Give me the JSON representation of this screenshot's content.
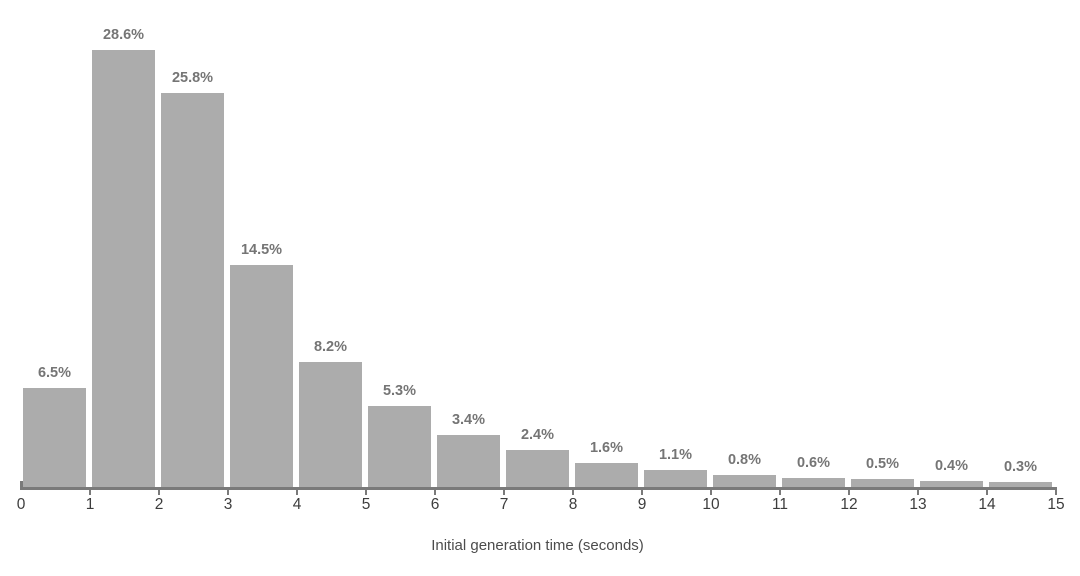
{
  "chart_data": {
    "type": "bar",
    "subtype": "histogram",
    "title": "",
    "xlabel": "Initial generation time (seconds)",
    "ylabel": "",
    "bin_edges": [
      0,
      1,
      2,
      3,
      4,
      5,
      6,
      7,
      8,
      9,
      10,
      11,
      12,
      13,
      14,
      15
    ],
    "values": [
      6.5,
      28.6,
      25.8,
      14.5,
      8.2,
      5.3,
      3.4,
      2.4,
      1.6,
      1.1,
      0.8,
      0.6,
      0.5,
      0.4,
      0.3
    ],
    "bar_labels": [
      "6.5%",
      "28.6%",
      "25.8%",
      "14.5%",
      "8.2%",
      "5.3%",
      "3.4%",
      "2.4%",
      "1.6%",
      "1.1%",
      "0.8%",
      "0.6%",
      "0.5%",
      "0.4%",
      "0.3%"
    ],
    "x_tick_labels": [
      "0",
      "1",
      "2",
      "3",
      "4",
      "5",
      "6",
      "7",
      "8",
      "9",
      "10",
      "11",
      "12",
      "13",
      "14",
      "15"
    ],
    "ylim": [
      0,
      30
    ],
    "grid": false,
    "legend": false,
    "colors": {
      "bar": "#acacac",
      "bar_label": "#757575",
      "axis_line": "#7a7a7a",
      "tick_label": "#3d3d3d",
      "axis_title": "#4c4c4c",
      "background": "#ffffff"
    }
  }
}
